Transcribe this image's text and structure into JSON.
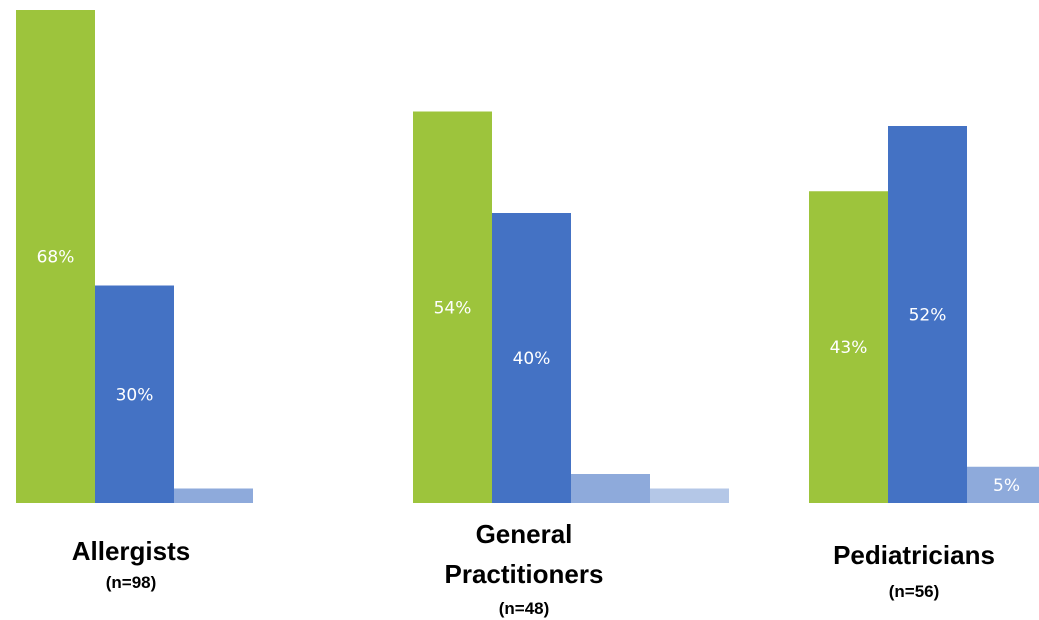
{
  "chart_data": {
    "type": "bar",
    "title": "",
    "xlabel": "",
    "ylabel": "",
    "ylim": [
      0,
      70
    ],
    "grid": false,
    "legend": "none",
    "categories": [
      {
        "name_lines": [
          "Allergists"
        ],
        "n_label": "(n=98)"
      },
      {
        "name_lines": [
          "General",
          "Practitioners"
        ],
        "n_label": "(n=48)"
      },
      {
        "name_lines": [
          "Pediatricians"
        ],
        "n_label": "(n=56)"
      }
    ],
    "series": [
      {
        "color": "#9dc43c",
        "values": [
          68,
          54,
          43
        ],
        "labels": [
          "68%",
          "54%",
          "43%"
        ]
      },
      {
        "color": "#4472c4",
        "values": [
          30,
          40,
          52
        ],
        "labels": [
          "30%",
          "40%",
          "52%"
        ]
      },
      {
        "color": "#8eaadb",
        "values": [
          2,
          4,
          5
        ],
        "labels": [
          "",
          "",
          "5%"
        ]
      },
      {
        "color": "#b4c7e7",
        "values": [
          null,
          2,
          null
        ],
        "labels": [
          "",
          "",
          ""
        ]
      }
    ]
  }
}
